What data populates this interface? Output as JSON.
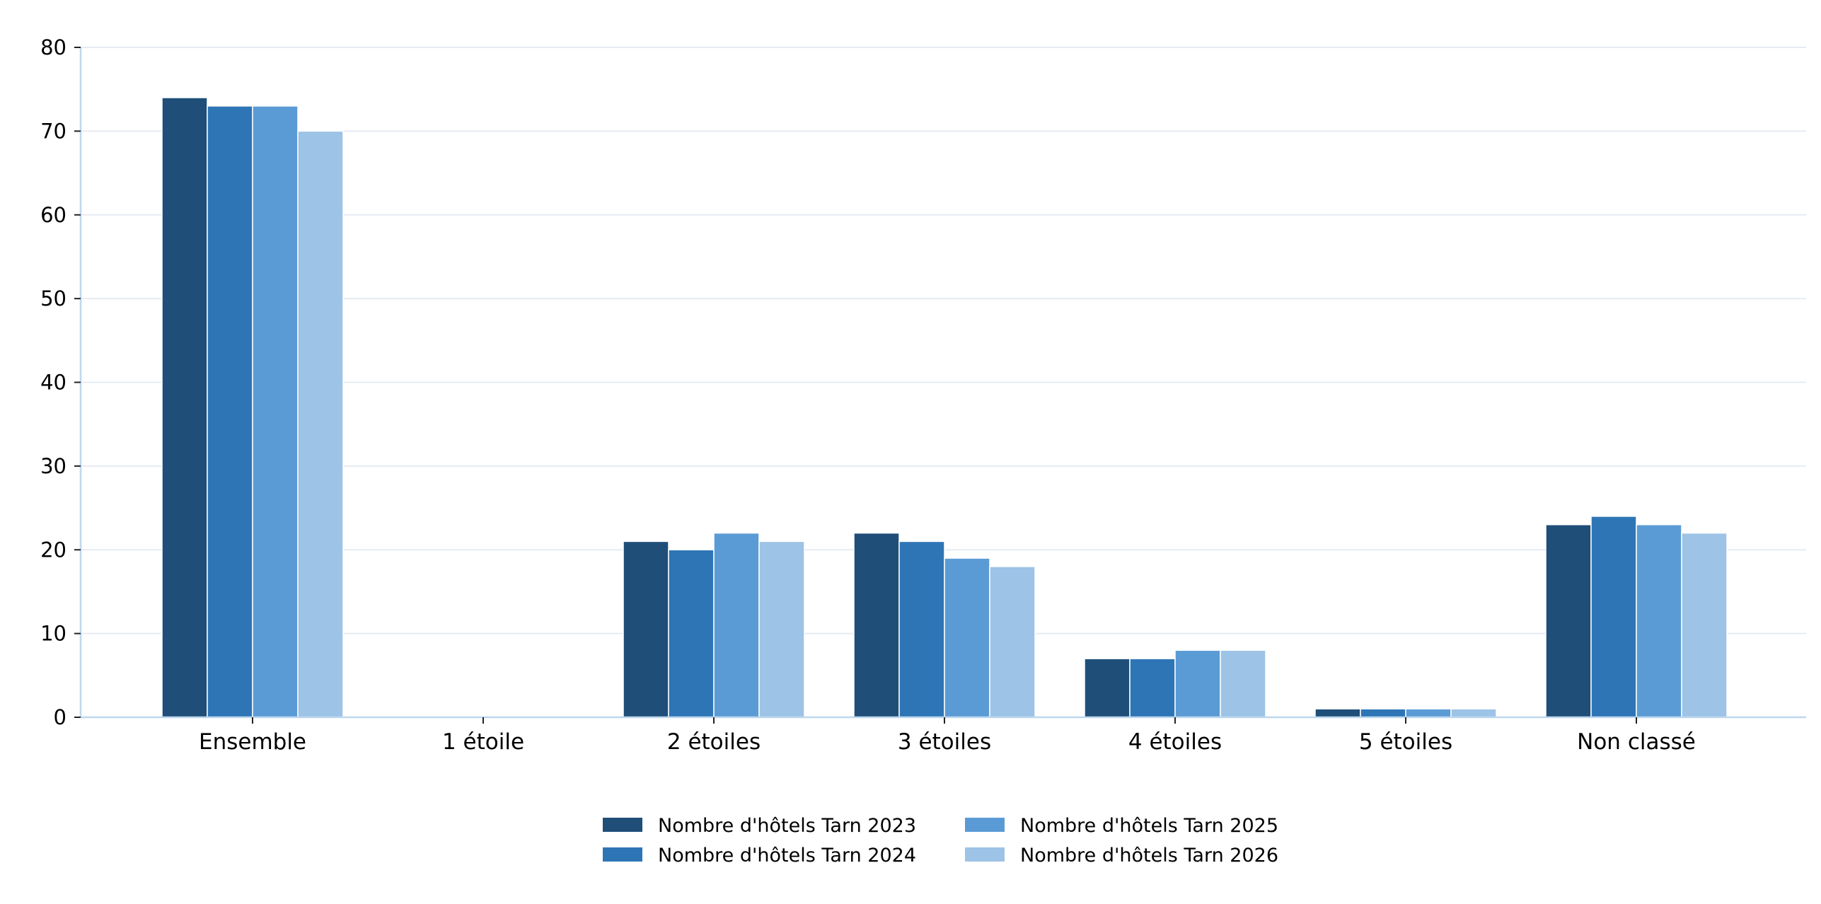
{
  "chart_data": {
    "type": "bar",
    "title": "",
    "xlabel": "",
    "ylabel": "",
    "categories": [
      "Ensemble",
      "1 étoile",
      "2 étoiles",
      "3 étoiles",
      "4 étoiles",
      "5 étoiles",
      "Non classé"
    ],
    "series": [
      {
        "name": "Nombre d'hôtels Tarn 2023",
        "color": "#1f4e79",
        "values": [
          74,
          0,
          21,
          22,
          7,
          1,
          23
        ]
      },
      {
        "name": "Nombre d'hôtels Tarn 2024",
        "color": "#2e75b6",
        "values": [
          73,
          0,
          20,
          21,
          7,
          1,
          24
        ]
      },
      {
        "name": "Nombre d'hôtels Tarn 2025",
        "color": "#5b9bd5",
        "values": [
          73,
          0,
          22,
          19,
          8,
          1,
          23
        ]
      },
      {
        "name": "Nombre d'hôtels Tarn 2026",
        "color": "#9dc3e6",
        "values": [
          70,
          0,
          21,
          18,
          8,
          1,
          22
        ]
      }
    ],
    "ylim": [
      0,
      80
    ],
    "yticks": [
      "0",
      "10",
      "20",
      "30",
      "40",
      "50",
      "60",
      "70",
      "80"
    ],
    "grid": true,
    "legend_position": "bottom-center"
  }
}
